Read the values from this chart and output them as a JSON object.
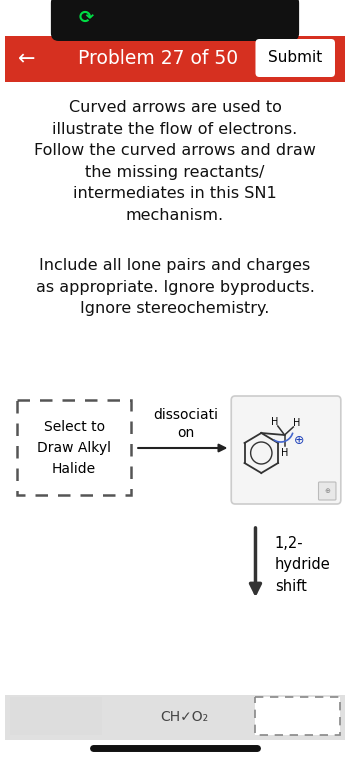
{
  "bg_color": "#ffffff",
  "header_bar_color": "#d63020",
  "header_text": "Problem 27 of 50",
  "header_text_color": "#ffffff",
  "submit_btn_color": "#ffffff",
  "submit_btn_text": "Submit",
  "back_arrow": "←",
  "status_bar_color": "#111111",
  "body_text_1": "Curved arrows are used to\nillustrate the flow of electrons.\nFollow the curved arrows and draw\nthe missing reactants/\nintermediates in this SN1\nmechanism.",
  "body_text_2": "Include all lone pairs and charges\nas appropriate. Ignore byproducts.\nIgnore stereochemistry.",
  "dashed_box_text": "Select to\nDraw Alkyl\nHalide",
  "arrow_label": "dissociati\non",
  "shift_label": "1,2-\nhydride\nshift",
  "bottom_label": "CH✓O₂",
  "carbocation_box_bg": "#f5f5f5",
  "carbocation_box_edge": "#cccccc",
  "icon_green_color": "#00dd44",
  "dashed_box_edge": "#555555",
  "arrow_color": "#222222",
  "shift_arrow_color": "#333333",
  "bottom_bar_color": "#e0e0e0",
  "bottom_line_color": "#111111"
}
